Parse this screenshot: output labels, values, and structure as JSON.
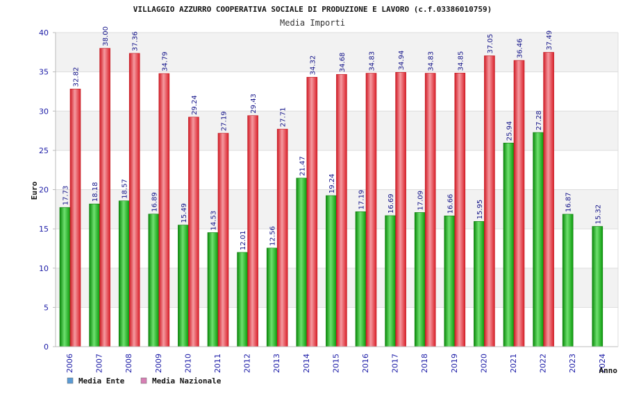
{
  "chart_data": {
    "type": "bar",
    "title": "VILLAGGIO AZZURRO COOPERATIVA SOCIALE DI PRODUZIONE E LAVORO (c.f.03386010759)",
    "subtitle": "Media Importi",
    "xlabel": "Anno",
    "ylabel": "Euro",
    "ylim": [
      0,
      40
    ],
    "yticks": [
      0,
      5,
      10,
      15,
      20,
      25,
      30,
      35,
      40
    ],
    "grid": true,
    "legend_position": "bottom-left",
    "categories": [
      "2006",
      "2007",
      "2008",
      "2009",
      "2010",
      "2011",
      "2012",
      "2013",
      "2014",
      "2015",
      "2016",
      "2017",
      "2018",
      "2019",
      "2020",
      "2021",
      "2022",
      "2023",
      "2024"
    ],
    "series": [
      {
        "name": "Media Ente",
        "legend_color": "#5b9bd5",
        "bar_color": "#1db31d",
        "values": [
          17.73,
          18.18,
          18.57,
          16.89,
          15.49,
          14.53,
          12.01,
          12.56,
          21.47,
          19.24,
          17.19,
          16.69,
          17.09,
          16.66,
          15.95,
          25.94,
          27.28,
          16.87,
          15.32
        ],
        "labels": [
          "17.73",
          "18.18",
          "18.57",
          "16.89",
          "15.49",
          "14.53",
          "12.01",
          "12.56",
          "21.47",
          "19.24",
          "17.19",
          "16.69",
          "17.09",
          "16.66",
          "15.95",
          "25.94",
          "27.28",
          "16.87",
          "15.32"
        ]
      },
      {
        "name": "Media Nazionale",
        "legend_color": "#d67fb4",
        "bar_color": "#e8323c",
        "values": [
          32.82,
          38.0,
          37.36,
          34.79,
          29.24,
          27.19,
          29.43,
          27.71,
          34.32,
          34.68,
          34.83,
          34.94,
          34.83,
          34.85,
          37.05,
          36.46,
          37.49,
          null,
          null
        ],
        "labels": [
          "32.82",
          "38.00",
          "37.36",
          "34.79",
          "29.24",
          "27.19",
          "29.43",
          "27.71",
          "34.32",
          "34.68",
          "34.83",
          "34.94",
          "34.83",
          "34.85",
          "37.05",
          "36.46",
          "37.49",
          null,
          null
        ]
      }
    ]
  }
}
